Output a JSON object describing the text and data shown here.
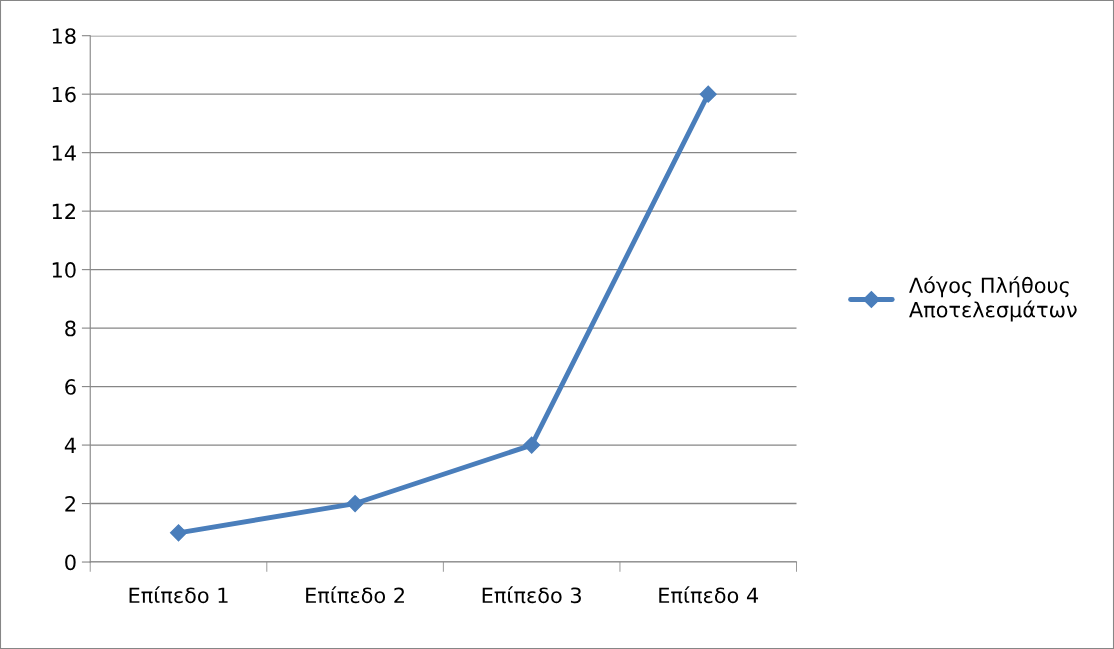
{
  "chart_data": {
    "type": "line",
    "categories": [
      "Επίπεδο 1",
      "Επίπεδο 2",
      "Επίπεδο 3",
      "Επίπεδο 4"
    ],
    "series": [
      {
        "name": "Λόγος Πλήθους Αποτελεσμάτων",
        "color": "#4a7ebb",
        "values": [
          1,
          2,
          4,
          16
        ]
      }
    ],
    "ylim": [
      0,
      18
    ],
    "yticks": [
      0,
      2,
      4,
      6,
      8,
      10,
      12,
      14,
      16,
      18
    ],
    "grid": "y",
    "legend": "right",
    "marker": "diamond",
    "line_style": "solid"
  }
}
